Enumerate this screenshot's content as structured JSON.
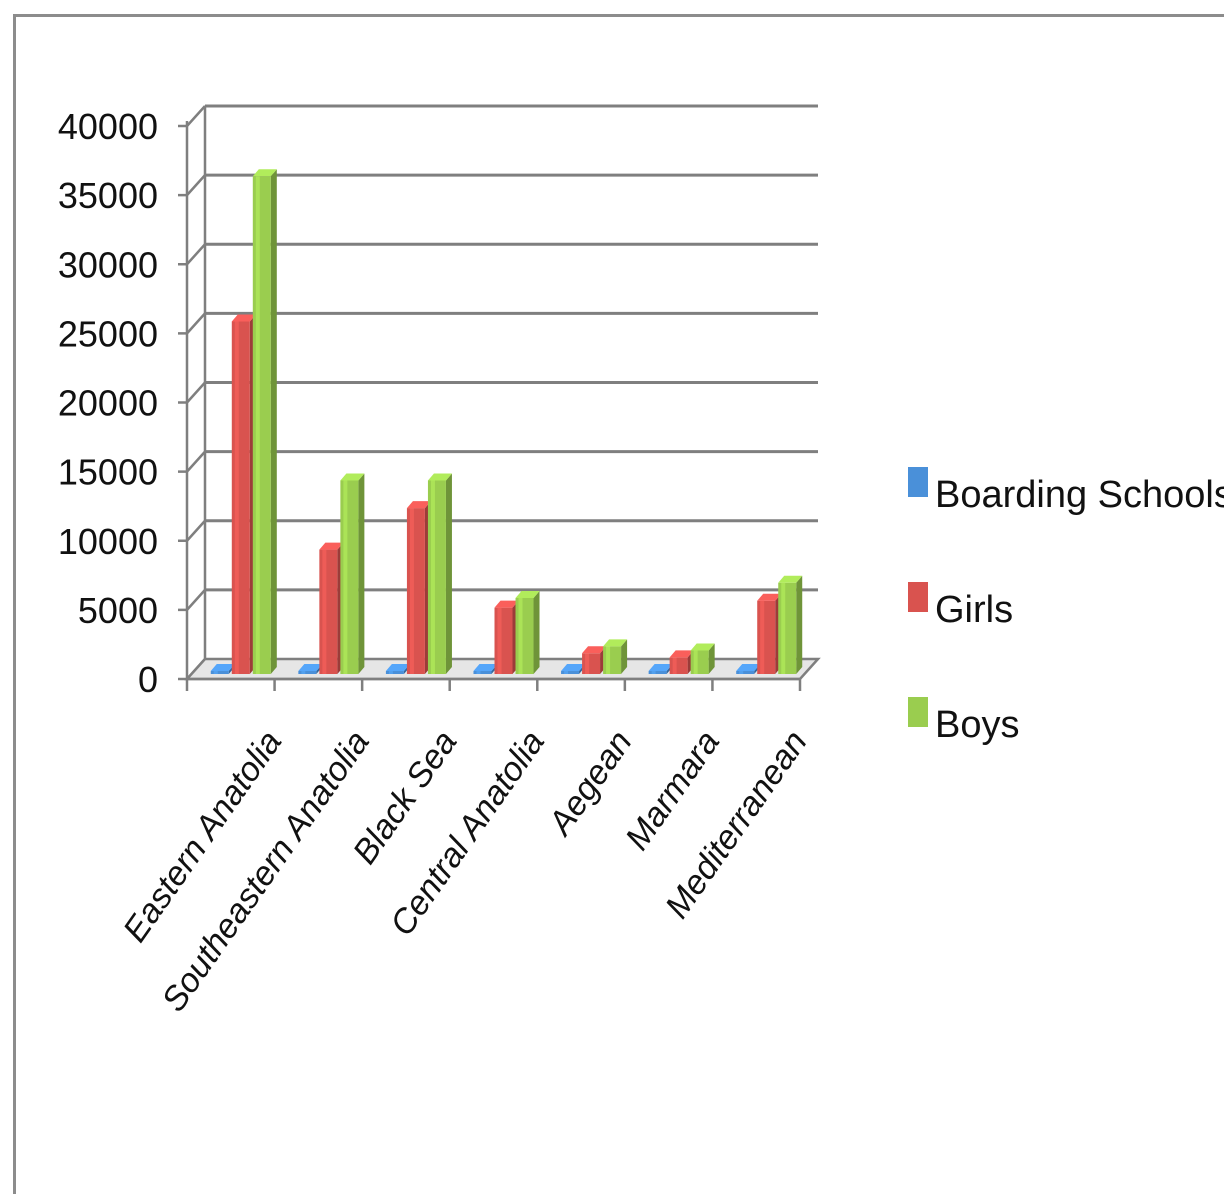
{
  "chart_data": {
    "type": "bar",
    "style": "3d-clustered-column",
    "categories": [
      "Eastern Anatolia",
      "Southeastern Anatolia",
      "Black Sea",
      "Central Anatolia",
      "Aegean",
      "Marmara",
      "Mediterranean"
    ],
    "series": [
      {
        "name": "Boarding Schools",
        "color": "#4a90d9",
        "values": [
          60,
          60,
          60,
          60,
          60,
          60,
          60
        ]
      },
      {
        "name": "Girls",
        "color": "#d9534f",
        "values": [
          25500,
          9000,
          12000,
          4800,
          1500,
          1200,
          5300
        ]
      },
      {
        "name": "Boys",
        "color": "#9acd4f",
        "values": [
          36000,
          14000,
          14000,
          5500,
          2000,
          1700,
          6600
        ]
      }
    ],
    "yticks": [
      "0",
      "5000",
      "10000",
      "15000",
      "20000",
      "25000",
      "30000",
      "35000",
      "40000"
    ],
    "ylim": [
      0,
      40000
    ],
    "grid": true,
    "legend_position": "right"
  }
}
